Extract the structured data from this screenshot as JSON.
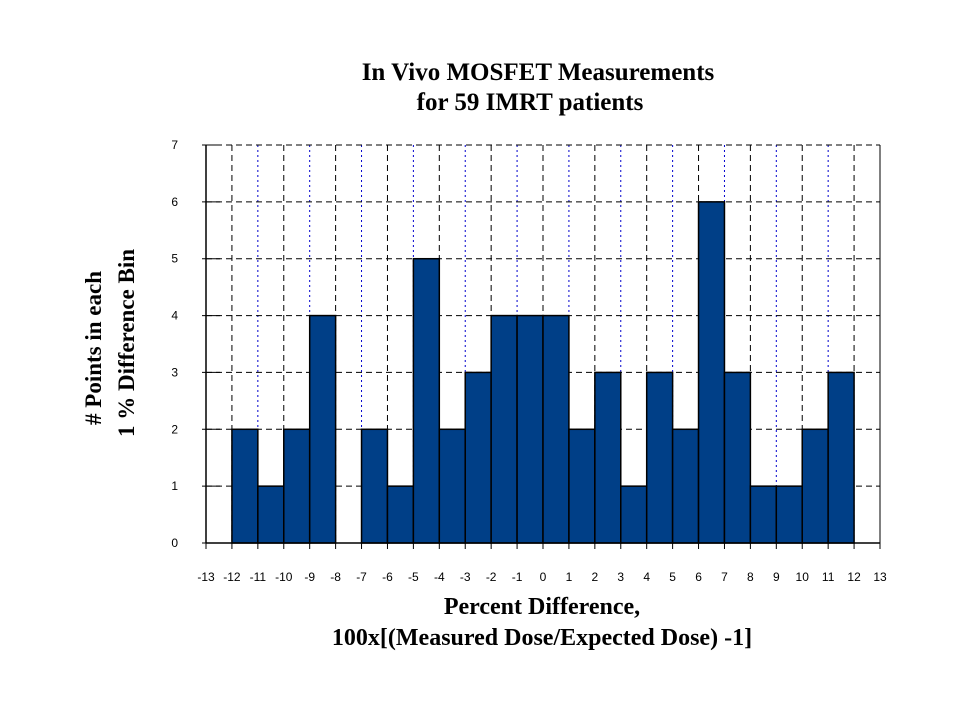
{
  "chart_data": {
    "type": "bar",
    "title": [
      "In Vivo MOSFET Measurements",
      "for 59 IMRT patients"
    ],
    "xlabel": [
      "Percent Difference,",
      "100x[(Measured Dose/Expected Dose) -1]"
    ],
    "ylabel": [
      "# Points in each",
      "1 % Difference Bin"
    ],
    "xlim": [
      -13,
      13
    ],
    "ylim": [
      0,
      7
    ],
    "x_ticks": [
      -13,
      -12,
      -11,
      -10,
      -9,
      -8,
      -7,
      -6,
      -5,
      -4,
      -3,
      -2,
      -1,
      0,
      1,
      2,
      3,
      4,
      5,
      6,
      7,
      8,
      9,
      10,
      11,
      12,
      13
    ],
    "y_ticks": [
      0,
      1,
      2,
      3,
      4,
      5,
      6,
      7
    ],
    "bins": [
      {
        "x0": -12,
        "x1": -11,
        "value": 2
      },
      {
        "x0": -11,
        "x1": -10,
        "value": 1
      },
      {
        "x0": -10,
        "x1": -9,
        "value": 2
      },
      {
        "x0": -9,
        "x1": -8,
        "value": 4
      },
      {
        "x0": -8,
        "x1": -7,
        "value": 0
      },
      {
        "x0": -7,
        "x1": -6,
        "value": 2
      },
      {
        "x0": -6,
        "x1": -5,
        "value": 1
      },
      {
        "x0": -5,
        "x1": -4,
        "value": 5
      },
      {
        "x0": -4,
        "x1": -3,
        "value": 2
      },
      {
        "x0": -3,
        "x1": -2,
        "value": 3
      },
      {
        "x0": -2,
        "x1": -1,
        "value": 4
      },
      {
        "x0": -1,
        "x1": 0,
        "value": 4
      },
      {
        "x0": 0,
        "x1": 1,
        "value": 4
      },
      {
        "x0": 1,
        "x1": 2,
        "value": 2
      },
      {
        "x0": 2,
        "x1": 3,
        "value": 3
      },
      {
        "x0": 3,
        "x1": 4,
        "value": 1
      },
      {
        "x0": 4,
        "x1": 5,
        "value": 3
      },
      {
        "x0": 5,
        "x1": 6,
        "value": 2
      },
      {
        "x0": 6,
        "x1": 7,
        "value": 6
      },
      {
        "x0": 7,
        "x1": 8,
        "value": 3
      },
      {
        "x0": 8,
        "x1": 9,
        "value": 1
      },
      {
        "x0": 9,
        "x1": 10,
        "value": 1
      },
      {
        "x0": 10,
        "x1": 11,
        "value": 2
      },
      {
        "x0": 11,
        "x1": 12,
        "value": 3
      }
    ],
    "bar_color": "#003f87",
    "bar_edge_color": "#000000",
    "grid": true,
    "grid_major_color": "#000000",
    "grid_minor_color": "#0000cc",
    "legend": "none"
  }
}
